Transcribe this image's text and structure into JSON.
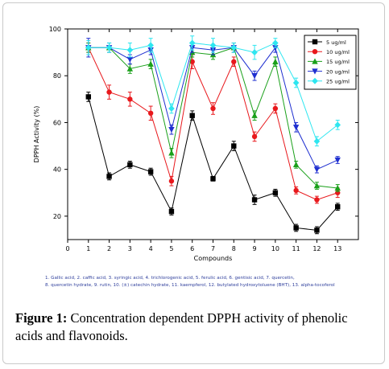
{
  "chart_data": {
    "type": "line",
    "xlabel": "Compounds",
    "ylabel": "DPPH Activity (%)",
    "xlim": [
      0,
      14
    ],
    "ylim": [
      10,
      100
    ],
    "x_ticks": [
      0,
      1,
      2,
      3,
      4,
      5,
      6,
      7,
      8,
      9,
      10,
      11,
      12,
      13
    ],
    "y_ticks": [
      20,
      40,
      60,
      80,
      100
    ],
    "x": [
      1,
      2,
      3,
      4,
      5,
      6,
      7,
      8,
      9,
      10,
      11,
      12,
      13
    ],
    "legend_position": "top-right",
    "grid": false,
    "series": [
      {
        "name": "5 ug/ml",
        "color": "#000000",
        "marker": "square",
        "values": [
          71,
          37,
          42,
          39,
          22,
          63,
          36,
          50,
          27,
          30,
          15,
          14,
          24
        ],
        "errors": [
          2,
          1.5,
          1.5,
          1.5,
          1.5,
          2,
          1,
          2,
          2,
          1.5,
          1.5,
          1.5,
          1.5
        ]
      },
      {
        "name": "10 ug/ml",
        "color": "#e8181c",
        "marker": "circle",
        "values": [
          92,
          73,
          70,
          64,
          35,
          86,
          66,
          86,
          54,
          66,
          31,
          27,
          30
        ],
        "errors": [
          2,
          3,
          3,
          3,
          2,
          3,
          2.5,
          2,
          2,
          2,
          1.5,
          1.5,
          2
        ]
      },
      {
        "name": "15 ug/ml",
        "color": "#1aa01a",
        "marker": "triangle",
        "values": [
          92,
          92,
          83,
          85,
          47,
          90,
          89,
          92,
          63,
          86,
          42,
          33,
          32
        ],
        "errors": [
          2,
          2,
          2,
          2,
          2,
          2,
          2,
          2,
          2,
          2,
          1.5,
          1.5,
          1.5
        ]
      },
      {
        "name": "20 ug/ml",
        "color": "#1f2fd0",
        "marker": "triangle-down",
        "values": [
          92,
          92,
          87,
          91,
          57,
          92,
          91,
          92,
          80,
          92,
          58,
          40,
          44
        ],
        "errors": [
          4,
          2,
          2,
          2,
          2,
          2,
          2,
          2,
          2,
          2,
          2,
          1.5,
          1.5
        ]
      },
      {
        "name": "25 ug/ml",
        "color": "#2ee6f0",
        "marker": "diamond",
        "values": [
          92,
          92,
          91,
          93,
          66,
          94,
          93,
          92,
          90,
          94,
          77,
          52,
          59
        ],
        "errors": [
          3,
          2,
          3,
          3,
          2,
          3,
          3,
          2,
          3,
          2,
          2,
          2,
          2
        ]
      }
    ]
  },
  "footnote": {
    "line1": "1. Gallic acid, 2. caffic acid, 3. syringic acid, 4. trichlorogenic acid, 5. ferulic acid, 6. gentisic acid, 7. quercetin,",
    "line2": "8. quercetin hydrate, 9. rutin, 10. (±) catechin hydrate, 11. kaempferol, 12. butylated hydroxytoluene (BHT), 13. alpha-tocoferol"
  },
  "caption": {
    "label": "Figure 1:",
    "text": " Concentration dependent DPPH activity of phenolic acids and flavonoids."
  }
}
